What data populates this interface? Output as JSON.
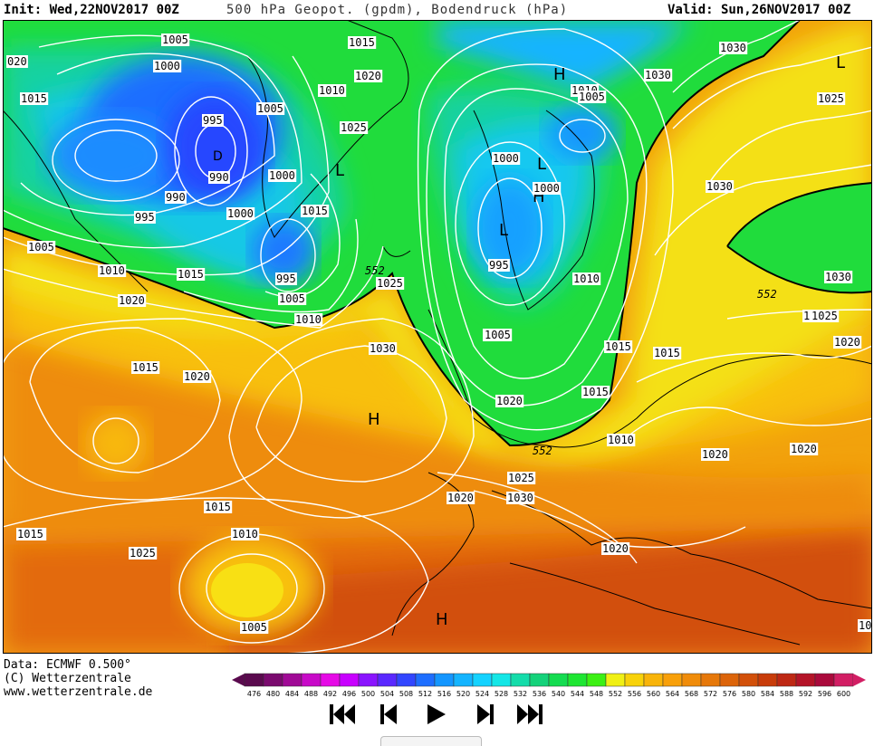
{
  "header": {
    "init": "Init: Wed,22NOV2017 00Z",
    "title": "500 hPa Geopot. (gpdm), Bodendruck (hPa)",
    "valid": "Valid: Sun,26NOV2017 00Z"
  },
  "credits": {
    "data": "Data: ECMWF  0.500°",
    "copyright": "(C) Wetterzentrale",
    "url": "www.wetterzentrale.de"
  },
  "legend": {
    "labels": [
      "476",
      "480",
      "484",
      "488",
      "492",
      "496",
      "500",
      "504",
      "508",
      "512",
      "516",
      "520",
      "524",
      "528",
      "532",
      "536",
      "540",
      "544",
      "548",
      "552",
      "556",
      "560",
      "564",
      "568",
      "572",
      "576",
      "580",
      "584",
      "588",
      "592",
      "596",
      "600"
    ],
    "colors": [
      "#5a0a4e",
      "#7a0a6e",
      "#a00a96",
      "#c80ac8",
      "#e60ae6",
      "#c800ff",
      "#8a14ff",
      "#5a28ff",
      "#3246ff",
      "#1e6eff",
      "#1496ff",
      "#14b4ff",
      "#14d2ff",
      "#14e6e6",
      "#14dcaa",
      "#14d27a",
      "#14dc50",
      "#1ee632",
      "#3cf014",
      "#f0f014",
      "#f8d20a",
      "#f8b40a",
      "#f8a00a",
      "#f08c0a",
      "#e6780a",
      "#dc640a",
      "#d2500a",
      "#c83c0a",
      "#be2814",
      "#b41428",
      "#aa0a3c",
      "#d21e64"
    ]
  },
  "map": {
    "pressure_labels": [
      "1005",
      "1000",
      "995",
      "990",
      "990",
      "995",
      "1005",
      "1010",
      "1015",
      "1020",
      "1015",
      "1005",
      "1000",
      "995",
      "1000",
      "1005",
      "1015",
      "1010",
      "1010",
      "1015",
      "1020",
      "1025",
      "1025",
      "1030",
      "1015",
      "1020",
      "1025",
      "1020",
      "1015",
      "1010",
      "1005",
      "1000",
      "995",
      "1000",
      "1005",
      "1010",
      "1010",
      "1005",
      "1015",
      "1010",
      "1020",
      "1030",
      "1025",
      "1020",
      "1030",
      "1030",
      "1025",
      "1030",
      "1015",
      "1020",
      "1020",
      "1015",
      "1010",
      "1005",
      "1020",
      "1030",
      "1025",
      "1020",
      "1015",
      "1005",
      "1025",
      "020",
      "10"
    ],
    "centers": [
      "H",
      "L",
      "L",
      "L",
      "H",
      "H",
      "H",
      "L",
      "D"
    ],
    "geopot_labels": [
      "552",
      "552",
      "552"
    ]
  },
  "nav": {
    "first": "first-frame",
    "prev": "previous-frame",
    "play": "play",
    "next": "next-frame",
    "last": "last-frame"
  }
}
